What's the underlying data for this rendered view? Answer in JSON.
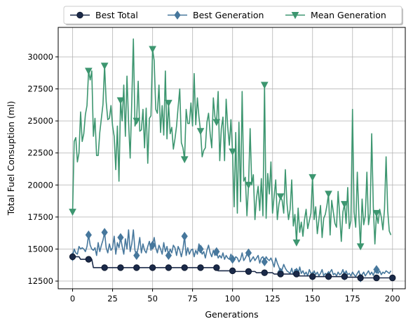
{
  "chart_data": {
    "type": "line",
    "xlabel": "Generations",
    "ylabel": "Total Fuel Consuption (ml)",
    "xlim": [
      -9,
      208
    ],
    "ylim": [
      11900,
      32300
    ],
    "xticks": [
      0,
      25,
      50,
      75,
      100,
      125,
      150,
      175,
      200
    ],
    "yticks": [
      12500,
      15000,
      17500,
      20000,
      22500,
      25000,
      27500,
      30000
    ],
    "grid": true,
    "legend_position": "top-center-outside",
    "series": [
      {
        "name": "Best Total",
        "color": "#1b2a49",
        "marker": "circle",
        "marker_every": 10,
        "x": [
          0,
          1,
          4,
          5,
          6,
          12,
          13,
          90,
          91,
          100,
          101,
          114,
          115,
          125,
          126,
          140,
          141,
          149,
          150,
          170,
          171,
          178,
          179,
          200
        ],
        "y": [
          14400,
          14400,
          14400,
          14200,
          14200,
          14200,
          13550,
          13550,
          13300,
          13300,
          13250,
          13250,
          13150,
          13150,
          13050,
          13050,
          12900,
          12900,
          12850,
          12850,
          12800,
          12800,
          12750,
          12750
        ]
      },
      {
        "name": "Best Generation",
        "color": "#46779c",
        "marker": "diamond",
        "marker_every": 10,
        "x": [
          0,
          1,
          2,
          3,
          4,
          5,
          6,
          7,
          8,
          9,
          10,
          11,
          12,
          13,
          14,
          15,
          16,
          17,
          18,
          19,
          20,
          21,
          22,
          23,
          24,
          25,
          26,
          27,
          28,
          29,
          30,
          31,
          32,
          33,
          34,
          35,
          36,
          37,
          38,
          39,
          40,
          41,
          42,
          43,
          44,
          45,
          46,
          47,
          48,
          49,
          50,
          51,
          52,
          53,
          54,
          55,
          56,
          57,
          58,
          59,
          60,
          61,
          62,
          63,
          64,
          65,
          66,
          67,
          68,
          69,
          70,
          71,
          72,
          73,
          74,
          75,
          76,
          77,
          78,
          79,
          80,
          81,
          82,
          83,
          84,
          85,
          86,
          87,
          88,
          89,
          90,
          91,
          92,
          93,
          94,
          95,
          96,
          97,
          98,
          99,
          100,
          101,
          102,
          103,
          104,
          105,
          106,
          107,
          108,
          109,
          110,
          111,
          112,
          113,
          114,
          115,
          116,
          117,
          118,
          119,
          120,
          121,
          122,
          123,
          124,
          125,
          126,
          127,
          128,
          129,
          130,
          131,
          132,
          133,
          134,
          135,
          136,
          137,
          138,
          139,
          140,
          141,
          142,
          143,
          144,
          145,
          146,
          147,
          148,
          149,
          150,
          151,
          152,
          153,
          154,
          155,
          156,
          157,
          158,
          159,
          160,
          161,
          162,
          163,
          164,
          165,
          166,
          167,
          168,
          169,
          170,
          171,
          172,
          173,
          174,
          175,
          176,
          177,
          178,
          179,
          180,
          181,
          182,
          183,
          184,
          185,
          186,
          187,
          188,
          189,
          190,
          191,
          192,
          193,
          194,
          195,
          196,
          197,
          198,
          199
        ],
        "y": [
          14400,
          15000,
          14700,
          14600,
          15200,
          15000,
          15100,
          15000,
          14800,
          15200,
          16100,
          15300,
          15000,
          14900,
          15100,
          14500,
          15500,
          14800,
          15300,
          15700,
          16300,
          15100,
          14700,
          15400,
          14900,
          15100,
          16000,
          14600,
          15500,
          15100,
          15900,
          15200,
          14600,
          15800,
          15000,
          16500,
          14800,
          15400,
          16500,
          14900,
          14500,
          15100,
          15900,
          14700,
          15400,
          14900,
          14700,
          15200,
          15600,
          14900,
          15300,
          15900,
          15100,
          14700,
          15300,
          15000,
          14600,
          15500,
          14800,
          15200,
          14500,
          15000,
          14700,
          15300,
          15100,
          14500,
          15200,
          14900,
          14400,
          15000,
          16000,
          14500,
          15100,
          14600,
          14900,
          15000,
          14400,
          14900,
          14600,
          15400,
          15000,
          14600,
          14800,
          14300,
          14900,
          15300,
          14700,
          14400,
          14900,
          14500,
          14800,
          14300,
          14500,
          14300,
          14700,
          14200,
          14500,
          14300,
          14200,
          14600,
          14200,
          14100,
          14400,
          14300,
          14000,
          14200,
          14700,
          14100,
          14300,
          14600,
          14700,
          14000,
          14200,
          14400,
          14100,
          14300,
          14500,
          13900,
          14300,
          14400,
          14000,
          14400,
          14200,
          14100,
          14300,
          14000,
          13600,
          14300,
          13900,
          13600,
          13200,
          13400,
          13800,
          13500,
          13300,
          13200,
          13100,
          13500,
          13000,
          13400,
          13200,
          13000,
          13600,
          13100,
          13300,
          13000,
          13200,
          12900,
          13400,
          13100,
          12900,
          13300,
          13000,
          13200,
          12900,
          13100,
          13400,
          12900,
          13100,
          13000,
          12950,
          13200,
          13400,
          13000,
          13100,
          12900,
          13200,
          13000,
          13100,
          13400,
          12900,
          13300,
          13000,
          13100,
          12900,
          13200,
          13000,
          12850,
          13100,
          13300,
          12750,
          13000,
          13200,
          12900,
          13100,
          13300,
          13000,
          13200,
          12950,
          13300,
          13400,
          13100,
          13300,
          13000,
          13200,
          13100,
          13300,
          13200,
          13100,
          13300
        ]
      },
      {
        "name": "Mean Generation",
        "color": "#3d9670",
        "marker": "triangle-down",
        "marker_every": 10,
        "x": [
          0,
          1,
          2,
          3,
          4,
          5,
          6,
          7,
          8,
          9,
          10,
          11,
          12,
          13,
          14,
          15,
          16,
          17,
          18,
          19,
          20,
          21,
          22,
          23,
          24,
          25,
          26,
          27,
          28,
          29,
          30,
          31,
          32,
          33,
          34,
          35,
          36,
          37,
          38,
          39,
          40,
          41,
          42,
          43,
          44,
          45,
          46,
          47,
          48,
          49,
          50,
          51,
          52,
          53,
          54,
          55,
          56,
          57,
          58,
          59,
          60,
          61,
          62,
          63,
          64,
          65,
          66,
          67,
          68,
          69,
          70,
          71,
          72,
          73,
          74,
          75,
          76,
          77,
          78,
          79,
          80,
          81,
          82,
          83,
          84,
          85,
          86,
          87,
          88,
          89,
          90,
          91,
          92,
          93,
          94,
          95,
          96,
          97,
          98,
          99,
          100,
          101,
          102,
          103,
          104,
          105,
          106,
          107,
          108,
          109,
          110,
          111,
          112,
          113,
          114,
          115,
          116,
          117,
          118,
          119,
          120,
          121,
          122,
          123,
          124,
          125,
          126,
          127,
          128,
          129,
          130,
          131,
          132,
          133,
          134,
          135,
          136,
          137,
          138,
          139,
          140,
          141,
          142,
          143,
          144,
          145,
          146,
          147,
          148,
          149,
          150,
          151,
          152,
          153,
          154,
          155,
          156,
          157,
          158,
          159,
          160,
          161,
          162,
          163,
          164,
          165,
          166,
          167,
          168,
          169,
          170,
          171,
          172,
          173,
          174,
          175,
          176,
          177,
          178,
          179,
          180,
          181,
          182,
          183,
          184,
          185,
          186,
          187,
          188,
          189,
          190,
          191,
          192,
          193,
          194,
          195,
          196,
          197,
          198,
          199
        ],
        "y": [
          17900,
          23400,
          23700,
          21800,
          22500,
          25700,
          23400,
          24000,
          25500,
          26200,
          28900,
          28200,
          28900,
          23800,
          25200,
          22300,
          22300,
          24100,
          25200,
          26300,
          29300,
          26500,
          25100,
          25200,
          26200,
          24600,
          23800,
          21200,
          24600,
          20300,
          26600,
          25000,
          27800,
          23800,
          28500,
          24900,
          22100,
          26500,
          31400,
          24600,
          25000,
          28100,
          24200,
          24300,
          25900,
          22900,
          26000,
          21700,
          25200,
          25400,
          30600,
          29700,
          25900,
          25600,
          27800,
          24100,
          26200,
          23900,
          28900,
          23600,
          26400,
          24000,
          24500,
          22800,
          23600,
          24600,
          26100,
          27500,
          23300,
          22900,
          22000,
          25900,
          24800,
          24800,
          26400,
          24600,
          28700,
          24700,
          26800,
          25300,
          24200,
          22200,
          22700,
          22900,
          24900,
          25600,
          24000,
          22900,
          26800,
          25300,
          24900,
          27300,
          21900,
          24400,
          25300,
          21900,
          26700,
          24500,
          23100,
          25100,
          22600,
          18300,
          24100,
          17800,
          24900,
          18700,
          27300,
          20300,
          20600,
          17600,
          20000,
          24400,
          20000,
          20800,
          17300,
          19000,
          19900,
          18000,
          20500,
          17600,
          27800,
          17400,
          20900,
          19300,
          21800,
          17800,
          19100,
          20400,
          17300,
          18500,
          19100,
          18800,
          17800,
          21200,
          18600,
          17300,
          18100,
          20400,
          16800,
          17700,
          15500,
          18200,
          16300,
          17100,
          16000,
          17300,
          18100,
          16600,
          17200,
          17800,
          20600,
          17300,
          18300,
          16200,
          17300,
          18400,
          15900,
          17400,
          17700,
          18400,
          19300,
          16100,
          18800,
          17900,
          17000,
          16700,
          19500,
          17600,
          15600,
          17900,
          18500,
          17000,
          19800,
          16600,
          17200,
          25900,
          17900,
          16700,
          21000,
          17600,
          15200,
          18900,
          16900,
          17600,
          21000,
          16900,
          17800,
          24000,
          18300,
          15400,
          17800,
          17000,
          18100,
          17500,
          16500,
          18100,
          22200,
          18000,
          16400,
          16100
        ]
      }
    ]
  }
}
